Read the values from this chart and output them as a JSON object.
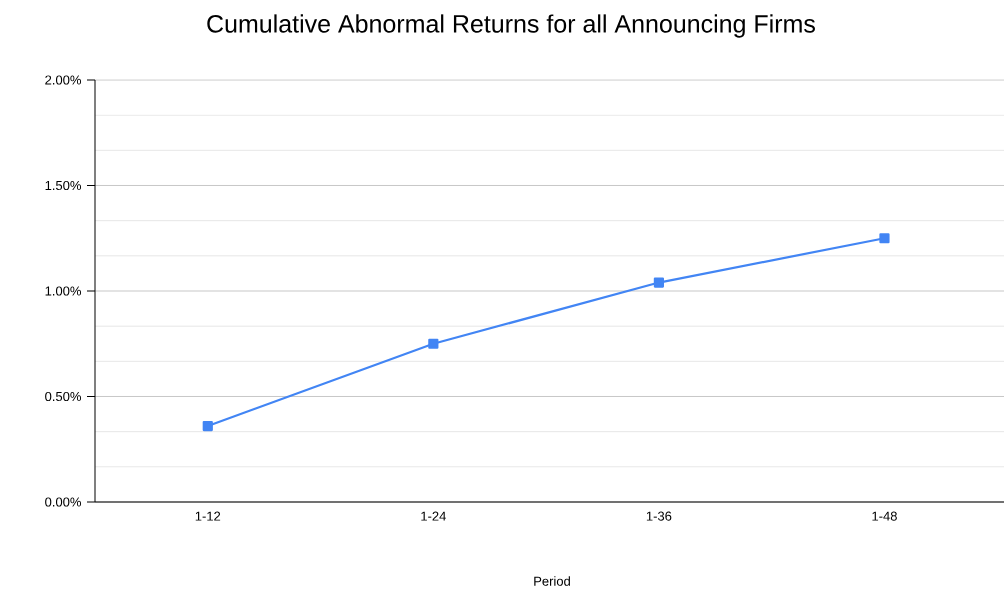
{
  "chart_data": {
    "type": "line",
    "title": "Cumulative Abnormal Returns for all Announcing Firms",
    "xlabel": "Period",
    "categories": [
      "1-12",
      "1-24",
      "1-36",
      "1-48"
    ],
    "series": [
      {
        "color": "#4285f4",
        "values": [
          0.36,
          0.75,
          1.04,
          1.25
        ]
      }
    ],
    "ylim": [
      0,
      2
    ],
    "yticks": [
      {
        "value": 0,
        "label": "0.00%"
      },
      {
        "value": 0.5,
        "label": "0.50%"
      },
      {
        "value": 1,
        "label": "1.00%"
      },
      {
        "value": 1.5,
        "label": "1.50%"
      },
      {
        "value": 2,
        "label": "2.00%"
      }
    ],
    "grid": "y",
    "marker": "square",
    "line_style": "solid"
  }
}
